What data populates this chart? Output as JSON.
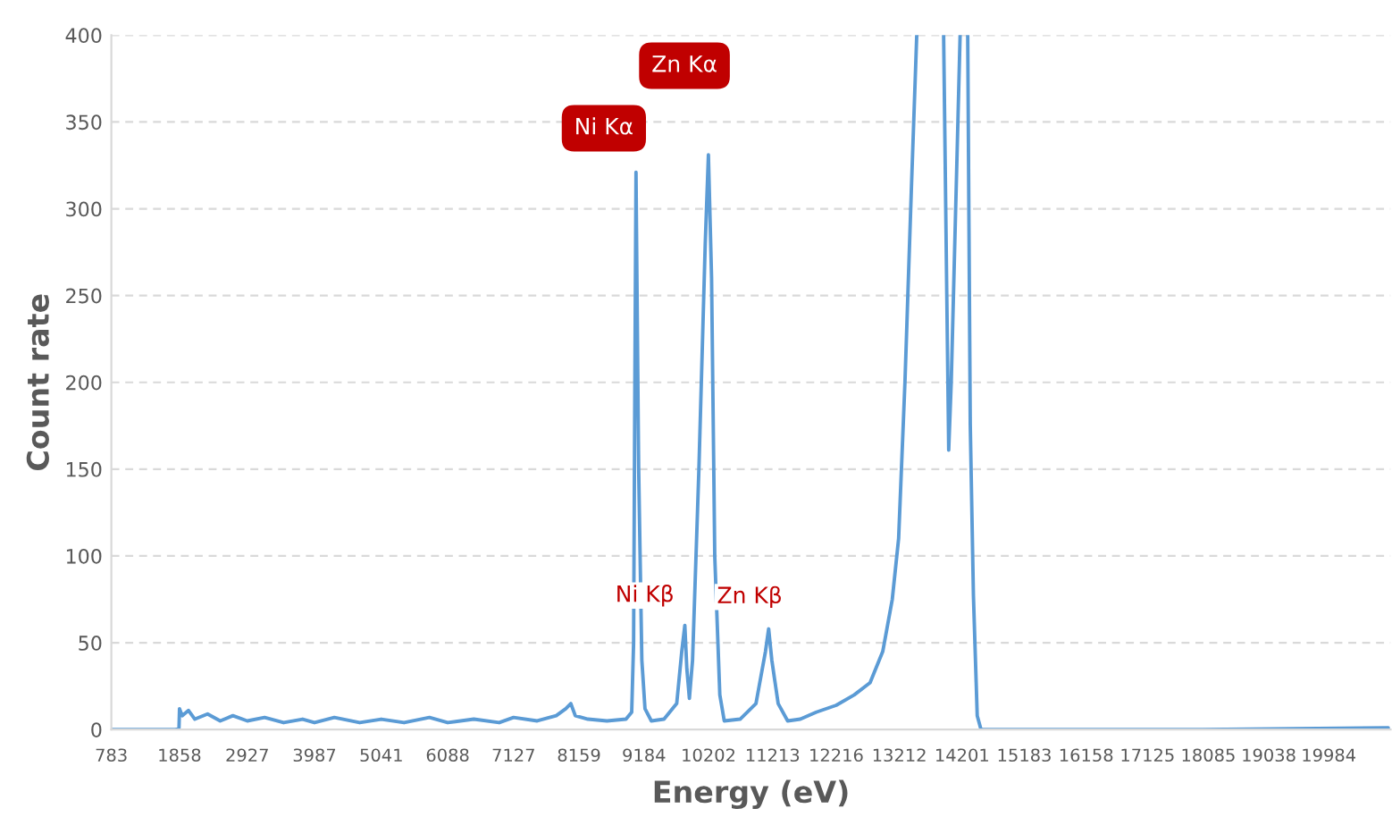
{
  "chart_data": {
    "type": "line",
    "xlabel": "Energy (eV)",
    "ylabel": "Count rate",
    "x": [
      783,
      1800,
      1850,
      1858,
      1900,
      2000,
      2100,
      2300,
      2500,
      2700,
      2927,
      3200,
      3500,
      3800,
      3987,
      4300,
      4700,
      5041,
      5400,
      5800,
      6088,
      6500,
      6900,
      7127,
      7500,
      7800,
      7950,
      8030,
      8100,
      8300,
      8600,
      8900,
      8990,
      9020,
      9040,
      9058,
      9075,
      9100,
      9150,
      9200,
      9300,
      9500,
      9700,
      9780,
      9828,
      9860,
      9900,
      9950,
      10050,
      10150,
      10200,
      10250,
      10300,
      10380,
      10450,
      10700,
      10950,
      11100,
      11150,
      11200,
      11300,
      11450,
      11650,
      11900,
      12216,
      12500,
      12750,
      12950,
      13100,
      13200,
      13300,
      13400,
      13486,
      13700,
      13910,
      13960,
      13990,
      14030,
      14100,
      14170,
      14230,
      14290,
      14330,
      14380,
      14440,
      14500,
      15183,
      18000,
      20923
    ],
    "series": [
      {
        "color": "#5b9bd5",
        "values": [
          0,
          0,
          1,
          12,
          8,
          11,
          6,
          9,
          5,
          8,
          5,
          7,
          4,
          6,
          4,
          7,
          4,
          6,
          4,
          7,
          4,
          6,
          4,
          7,
          5,
          8,
          12,
          15,
          8,
          6,
          5,
          6,
          10,
          50,
          200,
          321,
          250,
          150,
          40,
          12,
          5,
          6,
          15,
          45,
          60,
          35,
          18,
          40,
          150,
          280,
          331,
          260,
          100,
          20,
          5,
          6,
          15,
          45,
          58,
          40,
          15,
          5,
          6,
          10,
          14,
          20,
          27,
          45,
          75,
          110,
          200,
          310,
          400,
          null,
          400,
          250,
          161,
          200,
          300,
          400,
          null,
          400,
          176,
          77,
          8,
          0,
          0,
          0,
          1
        ]
      }
    ],
    "xlim": [
      783,
      20960
    ],
    "xticks": [
      783,
      1858,
      2927,
      3987,
      5041,
      6088,
      7127,
      8159,
      9184,
      10202,
      11213,
      12216,
      13212,
      14201,
      15183,
      16158,
      17125,
      18085,
      19038,
      19984
    ],
    "ylim": [
      0,
      400
    ],
    "yticks": [
      0,
      50,
      100,
      150,
      200,
      250,
      300,
      350,
      400
    ],
    "grid": "y",
    "annotations": [
      "Ni Kα",
      "Zn Kα",
      "Ni Kβ",
      "Zn Kβ"
    ]
  }
}
